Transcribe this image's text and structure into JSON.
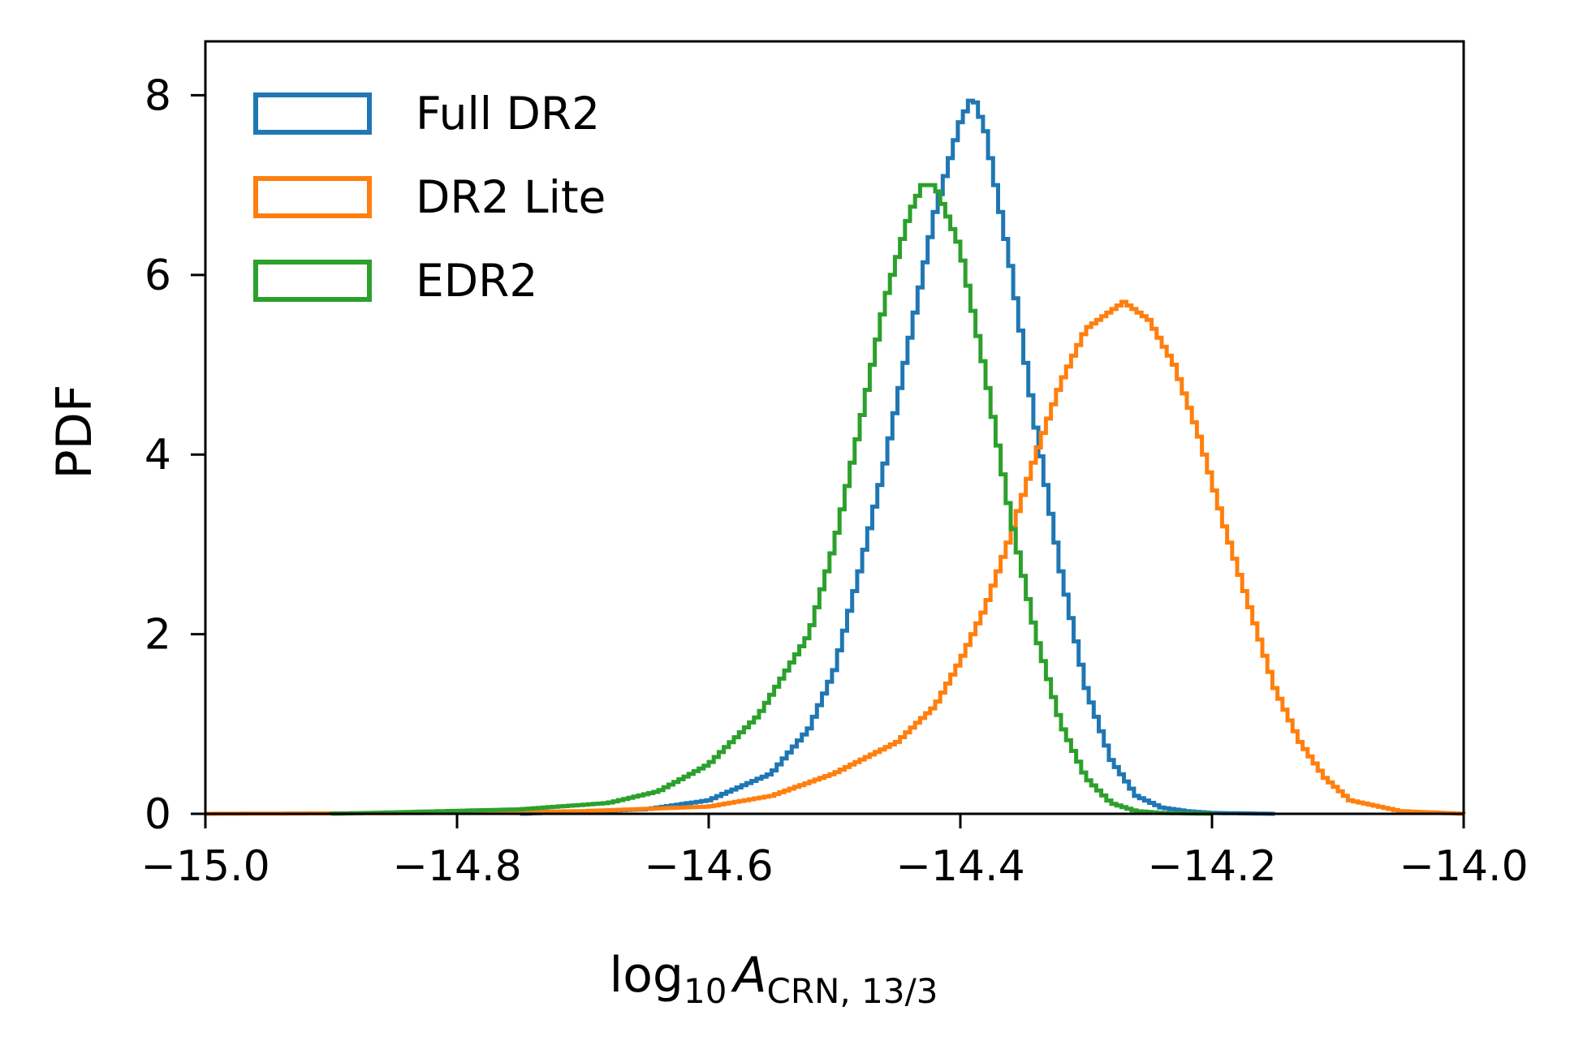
{
  "chart_data": {
    "type": "line",
    "style": "step histogram",
    "xlabel": {
      "base": "log",
      "base_sub": "10",
      "symbol": "A",
      "symbol_sub": "CRN, 13/3"
    },
    "ylabel": "PDF",
    "xlim": [
      -15.0,
      -14.0
    ],
    "ylim": [
      0,
      8.6
    ],
    "x_ticks": [
      {
        "value": -15.0,
        "label": "−15.0"
      },
      {
        "value": -14.8,
        "label": "−14.8"
      },
      {
        "value": -14.6,
        "label": "−14.6"
      },
      {
        "value": -14.4,
        "label": "−14.4"
      },
      {
        "value": -14.2,
        "label": "−14.2"
      },
      {
        "value": -14.0,
        "label": "−14.0"
      }
    ],
    "y_ticks": [
      {
        "value": 0,
        "label": "0"
      },
      {
        "value": 2,
        "label": "2"
      },
      {
        "value": 4,
        "label": "4"
      },
      {
        "value": 6,
        "label": "6"
      },
      {
        "value": 8,
        "label": "8"
      }
    ],
    "grid": false,
    "legend_position": "top-left",
    "series": [
      {
        "name": "Full DR2",
        "color": "#1f77b4",
        "x": [
          -14.75,
          -14.65,
          -14.6,
          -14.55,
          -14.52,
          -14.5,
          -14.48,
          -14.46,
          -14.44,
          -14.42,
          -14.4,
          -14.39,
          -14.38,
          -14.36,
          -14.34,
          -14.32,
          -14.3,
          -14.28,
          -14.26,
          -14.24,
          -14.22,
          -14.2,
          -14.15
        ],
        "y": [
          0.0,
          0.05,
          0.15,
          0.45,
          0.95,
          1.6,
          2.7,
          3.9,
          5.3,
          6.7,
          7.7,
          8.0,
          7.6,
          6.1,
          4.3,
          2.7,
          1.4,
          0.6,
          0.2,
          0.07,
          0.03,
          0.01,
          0.0
        ]
      },
      {
        "name": "DR2 Lite",
        "color": "#ff7f0e",
        "x": [
          -15.0,
          -14.8,
          -14.7,
          -14.6,
          -14.55,
          -14.5,
          -14.45,
          -14.42,
          -14.4,
          -14.38,
          -14.36,
          -14.34,
          -14.32,
          -14.3,
          -14.28,
          -14.27,
          -14.25,
          -14.23,
          -14.21,
          -14.19,
          -14.17,
          -14.15,
          -14.13,
          -14.11,
          -14.09,
          -14.05,
          -14.0
        ],
        "y": [
          0.0,
          0.01,
          0.03,
          0.08,
          0.2,
          0.45,
          0.8,
          1.2,
          1.7,
          2.3,
          3.1,
          4.0,
          4.8,
          5.4,
          5.6,
          5.7,
          5.5,
          5.0,
          4.2,
          3.2,
          2.3,
          1.4,
          0.8,
          0.4,
          0.15,
          0.03,
          0.0
        ]
      },
      {
        "name": "EDR2",
        "color": "#2ca02c",
        "x": [
          -14.9,
          -14.75,
          -14.68,
          -14.64,
          -14.6,
          -14.56,
          -14.52,
          -14.5,
          -14.48,
          -14.46,
          -14.44,
          -14.43,
          -14.42,
          -14.4,
          -14.38,
          -14.36,
          -14.34,
          -14.32,
          -14.3,
          -14.28,
          -14.26,
          -14.24,
          -14.2
        ],
        "y": [
          0.0,
          0.05,
          0.12,
          0.25,
          0.55,
          1.1,
          2.0,
          3.0,
          4.3,
          5.7,
          6.7,
          7.0,
          7.0,
          6.3,
          4.9,
          3.3,
          2.0,
          1.0,
          0.4,
          0.12,
          0.03,
          0.01,
          0.0
        ]
      }
    ]
  }
}
